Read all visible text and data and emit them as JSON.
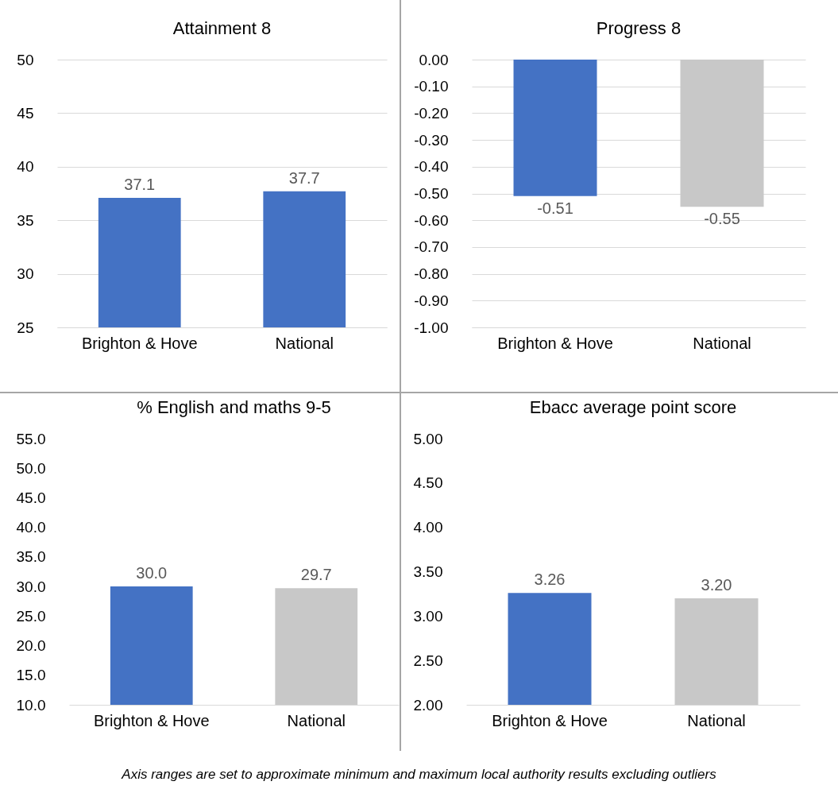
{
  "chart_data": [
    {
      "type": "bar",
      "title": "Attainment 8",
      "categories": [
        "Brighton & Hove",
        "National"
      ],
      "values": [
        37.1,
        37.7
      ],
      "value_labels": [
        "37.1",
        "37.7"
      ],
      "colors": [
        "#4472c4",
        "#4472c4"
      ],
      "ylim": [
        25,
        50
      ],
      "yticks": [
        25,
        30,
        35,
        40,
        45,
        50
      ],
      "grid": "y"
    },
    {
      "type": "bar",
      "title": "Progress 8",
      "categories": [
        "Brighton & Hove",
        "National"
      ],
      "values": [
        -0.51,
        -0.55
      ],
      "value_labels": [
        "-0.51",
        "-0.55"
      ],
      "colors": [
        "#4472c4",
        "#c8c8c8"
      ],
      "ylim": [
        -1,
        0
      ],
      "yticks": [
        {
          "value": 0,
          "label": "0.00"
        },
        {
          "value": -0.1,
          "label": "-0.10"
        },
        {
          "value": -0.2,
          "label": "-0.20"
        },
        {
          "value": -0.3,
          "label": "-0.30"
        },
        {
          "value": -0.4,
          "label": "-0.40"
        },
        {
          "value": -0.5,
          "label": "-0.50"
        },
        {
          "value": -0.6,
          "label": "-0.60"
        },
        {
          "value": -0.7,
          "label": "-0.70"
        },
        {
          "value": -0.8,
          "label": "-0.80"
        },
        {
          "value": -0.9,
          "label": "-0.90"
        },
        {
          "value": -1,
          "label": "-1.00"
        }
      ],
      "grid": "y"
    },
    {
      "type": "bar",
      "title": "% English and maths 9-5",
      "categories": [
        "Brighton & Hove",
        "National"
      ],
      "values": [
        30.0,
        29.7
      ],
      "value_labels": [
        "30.0",
        "29.7"
      ],
      "colors": [
        "#4472c4",
        "#c8c8c8"
      ],
      "ylim": [
        10,
        55
      ],
      "yticks": [
        {
          "value": 10,
          "label": "10.0"
        },
        {
          "value": 15,
          "label": "15.0"
        },
        {
          "value": 20,
          "label": "20.0"
        },
        {
          "value": 25,
          "label": "25.0"
        },
        {
          "value": 30,
          "label": "30.0"
        },
        {
          "value": 35,
          "label": "35.0"
        },
        {
          "value": 40,
          "label": "40.0"
        },
        {
          "value": 45,
          "label": "45.0"
        },
        {
          "value": 50,
          "label": "50.0"
        },
        {
          "value": 55,
          "label": "55.0"
        }
      ],
      "grid": false
    },
    {
      "type": "bar",
      "title": "Ebacc average point score",
      "categories": [
        "Brighton & Hove",
        "National"
      ],
      "values": [
        3.26,
        3.2
      ],
      "value_labels": [
        "3.26",
        "3.20"
      ],
      "colors": [
        "#4472c4",
        "#c8c8c8"
      ],
      "ylim": [
        2,
        5
      ],
      "yticks": [
        {
          "value": 2,
          "label": "2.00"
        },
        {
          "value": 2.5,
          "label": "2.50"
        },
        {
          "value": 3,
          "label": "3.00"
        },
        {
          "value": 3.5,
          "label": "3.50"
        },
        {
          "value": 4,
          "label": "4.00"
        },
        {
          "value": 4.5,
          "label": "4.50"
        },
        {
          "value": 5,
          "label": "5.00"
        }
      ],
      "grid": false,
      "annotations": [
        "Axis ranges are set to approximate minimum and maximum local authority results excluding outliers"
      ]
    }
  ]
}
